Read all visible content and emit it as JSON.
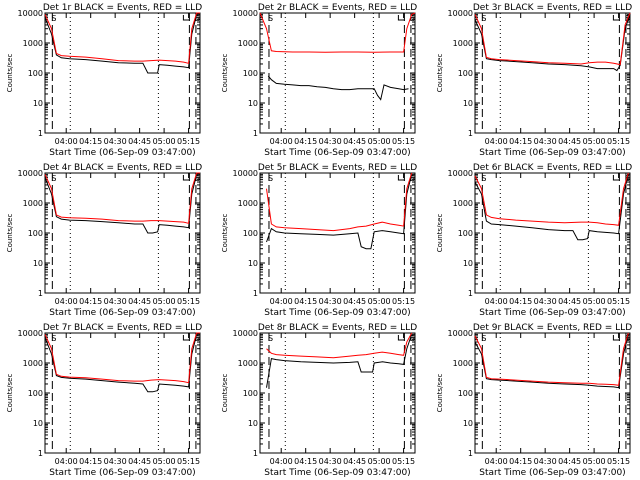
{
  "colors": {
    "events": "#000000",
    "lld": "#ff0000",
    "axis": "#000000"
  },
  "common": {
    "ylabel": "Counts/sec",
    "xlabel": "Start Time (06-Sep-09 03:47:00)",
    "y_ticks": [
      1,
      10,
      100,
      1000,
      10000
    ],
    "y_tick_labels": [
      "1",
      "10",
      "100",
      "1000",
      "10000"
    ],
    "x_ticks": [
      "04:00",
      "04:15",
      "04:30",
      "04:45",
      "05:00",
      "05:15"
    ],
    "x_tick_minutes": [
      13,
      28,
      43,
      58,
      73,
      88
    ],
    "xlim_minutes": [
      0,
      95
    ],
    "ylim": [
      1,
      10000
    ],
    "yscale": "log",
    "marker_label": "S"
  },
  "chart_data": [
    {
      "type": "line",
      "title": "Det 1r BLACK = Events, RED = LLD",
      "markers": {
        "dashed_min": [
          4.5,
          88.5,
          92.5
        ],
        "dotted_min": [
          15.5,
          69.5
        ]
      },
      "series": [
        {
          "name": "Events",
          "x": [
            0,
            4,
            7,
            10,
            15,
            25,
            35,
            45,
            55,
            60,
            63,
            65,
            69,
            70,
            75,
            80,
            85,
            88,
            90,
            93,
            95
          ],
          "values": [
            7000,
            2000,
            400,
            320,
            300,
            280,
            250,
            220,
            210,
            210,
            100,
            100,
            100,
            190,
            180,
            170,
            160,
            150,
            2000,
            9000,
            10000
          ]
        },
        {
          "name": "LLD",
          "x": [
            0,
            4,
            7,
            10,
            15,
            25,
            35,
            45,
            55,
            60,
            65,
            70,
            75,
            80,
            85,
            88,
            90,
            93,
            95
          ],
          "values": [
            9000,
            3000,
            450,
            380,
            360,
            340,
            300,
            260,
            250,
            250,
            260,
            270,
            260,
            250,
            230,
            210,
            3000,
            10000,
            10000
          ]
        }
      ]
    },
    {
      "type": "line",
      "title": "Det 2r BLACK = Events, RED = LLD",
      "markers": {
        "dashed_min": [
          5.5,
          88.5,
          92.5
        ],
        "dotted_min": [
          15.5,
          69.5
        ]
      },
      "series": [
        {
          "name": "Events",
          "x": [
            5,
            7,
            10,
            15,
            20,
            25,
            30,
            35,
            40,
            45,
            50,
            55,
            60,
            65,
            70,
            72,
            74,
            76,
            80,
            85,
            88,
            91
          ],
          "values": [
            80,
            60,
            45,
            42,
            40,
            38,
            38,
            35,
            33,
            30,
            28,
            28,
            30,
            30,
            30,
            18,
            13,
            40,
            33,
            30,
            28,
            30
          ]
        },
        {
          "name": "LLD",
          "x": [
            0,
            4,
            7,
            10,
            20,
            30,
            40,
            50,
            60,
            70,
            80,
            88,
            90,
            93,
            95
          ],
          "values": [
            10000,
            3000,
            550,
            520,
            500,
            500,
            490,
            500,
            500,
            490,
            500,
            500,
            3000,
            9000,
            10000
          ]
        }
      ]
    },
    {
      "type": "line",
      "title": "Det 3r BLACK = Events, RED = LLD",
      "markers": {
        "dashed_min": [
          4.5,
          88.5,
          92.5
        ],
        "dotted_min": [
          15.5,
          69.5
        ]
      },
      "series": [
        {
          "name": "Events",
          "x": [
            0,
            4,
            7,
            10,
            15,
            25,
            35,
            45,
            55,
            65,
            70,
            75,
            80,
            85,
            87,
            89,
            92,
            95
          ],
          "values": [
            6000,
            2000,
            300,
            280,
            260,
            240,
            220,
            200,
            190,
            175,
            160,
            140,
            140,
            140,
            120,
            180,
            3000,
            9000
          ]
        },
        {
          "name": "LLD",
          "x": [
            0,
            4,
            7,
            10,
            15,
            25,
            35,
            45,
            55,
            65,
            70,
            75,
            80,
            85,
            89,
            92,
            95
          ],
          "values": [
            9000,
            3000,
            330,
            300,
            280,
            260,
            240,
            220,
            210,
            200,
            220,
            230,
            230,
            210,
            190,
            4000,
            10000
          ]
        }
      ]
    },
    {
      "type": "line",
      "title": "Det 4r BLACK = Events, RED = LLD",
      "markers": {
        "dashed_min": [
          4.5,
          88.5,
          92.5
        ],
        "dotted_min": [
          15.5,
          69.5
        ]
      },
      "series": [
        {
          "name": "Events",
          "x": [
            0,
            4,
            7,
            10,
            15,
            25,
            35,
            45,
            55,
            60,
            63,
            66,
            69,
            70,
            75,
            80,
            85,
            88,
            90,
            93,
            95
          ],
          "values": [
            7000,
            2000,
            350,
            290,
            270,
            260,
            240,
            220,
            200,
            200,
            100,
            100,
            110,
            190,
            180,
            170,
            160,
            150,
            2000,
            9000,
            10000
          ]
        },
        {
          "name": "LLD",
          "x": [
            0,
            4,
            7,
            10,
            15,
            25,
            35,
            45,
            55,
            60,
            65,
            70,
            75,
            80,
            85,
            88,
            90,
            93,
            95
          ],
          "values": [
            9000,
            3000,
            400,
            340,
            320,
            310,
            290,
            260,
            250,
            250,
            260,
            260,
            250,
            240,
            230,
            210,
            3000,
            10000,
            10000
          ]
        }
      ]
    },
    {
      "type": "line",
      "title": "Det 5r BLACK = Events, RED = LLD",
      "markers": {
        "dashed_min": [
          5.5,
          88.5,
          92.5
        ],
        "dotted_min": [
          15.5,
          69.5
        ]
      },
      "series": [
        {
          "name": "Events",
          "x": [
            4,
            7,
            10,
            15,
            25,
            35,
            45,
            55,
            60,
            62,
            65,
            68,
            70,
            75,
            80,
            85,
            88,
            90,
            93
          ],
          "values": [
            50,
            140,
            110,
            100,
            95,
            90,
            85,
            95,
            100,
            35,
            30,
            30,
            110,
            120,
            110,
            100,
            95,
            2000,
            9000
          ]
        },
        {
          "name": "LLD",
          "x": [
            4,
            7,
            10,
            15,
            25,
            35,
            45,
            55,
            60,
            65,
            70,
            75,
            80,
            85,
            88,
            90,
            93
          ],
          "values": [
            3000,
            200,
            160,
            150,
            140,
            130,
            120,
            140,
            160,
            170,
            200,
            230,
            200,
            180,
            170,
            3000,
            10000
          ]
        }
      ]
    },
    {
      "type": "line",
      "title": "Det 6r BLACK = Events, RED = LLD",
      "markers": {
        "dashed_min": [
          4.5,
          88.5,
          92.5
        ],
        "dotted_min": [
          15.5,
          69.5
        ]
      },
      "series": [
        {
          "name": "Events",
          "x": [
            0,
            4,
            7,
            10,
            15,
            25,
            35,
            45,
            55,
            60,
            63,
            66,
            69,
            70,
            75,
            80,
            85,
            88,
            91,
            94
          ],
          "values": [
            5000,
            2000,
            250,
            200,
            190,
            170,
            150,
            130,
            120,
            120,
            60,
            60,
            65,
            120,
            110,
            105,
            100,
            95,
            2000,
            9000
          ]
        },
        {
          "name": "LLD",
          "x": [
            0,
            4,
            7,
            10,
            15,
            25,
            35,
            45,
            55,
            65,
            70,
            75,
            80,
            85,
            88,
            91,
            94
          ],
          "values": [
            8000,
            3000,
            400,
            330,
            300,
            270,
            250,
            230,
            220,
            230,
            230,
            220,
            200,
            190,
            180,
            3000,
            10000
          ]
        }
      ]
    },
    {
      "type": "line",
      "title": "Det 7r BLACK = Events, RED = LLD",
      "markers": {
        "dashed_min": [
          4.5,
          88.5,
          92.5
        ],
        "dotted_min": [
          15.5,
          69.5
        ]
      },
      "series": [
        {
          "name": "Events",
          "x": [
            0,
            4,
            7,
            10,
            15,
            25,
            35,
            45,
            55,
            60,
            63,
            66,
            69,
            70,
            75,
            80,
            85,
            88,
            90,
            93,
            95
          ],
          "values": [
            7000,
            2000,
            380,
            330,
            310,
            290,
            260,
            230,
            210,
            200,
            110,
            110,
            120,
            200,
            190,
            180,
            170,
            160,
            2000,
            9000,
            10000
          ]
        },
        {
          "name": "LLD",
          "x": [
            0,
            4,
            7,
            10,
            15,
            25,
            35,
            45,
            55,
            60,
            65,
            70,
            75,
            80,
            85,
            88,
            90,
            93,
            95
          ],
          "values": [
            9000,
            3000,
            420,
            360,
            340,
            320,
            290,
            260,
            250,
            250,
            270,
            280,
            270,
            260,
            240,
            220,
            3000,
            10000,
            10000
          ]
        }
      ]
    },
    {
      "type": "line",
      "title": "Det 8r BLACK = Events, RED = LLD",
      "markers": {
        "dashed_min": [
          5.5,
          88.5,
          92.5
        ],
        "dotted_min": [
          15.5,
          69.5
        ]
      },
      "series": [
        {
          "name": "Events",
          "x": [
            4,
            7,
            10,
            15,
            25,
            35,
            45,
            55,
            60,
            62,
            66,
            69,
            70,
            75,
            80,
            85,
            88,
            90,
            93
          ],
          "values": [
            150,
            1400,
            1300,
            1200,
            1100,
            1050,
            1000,
            1050,
            1100,
            500,
            500,
            500,
            1000,
            1100,
            1000,
            950,
            900,
            3000,
            9000
          ]
        },
        {
          "name": "LLD",
          "x": [
            4,
            7,
            10,
            15,
            25,
            35,
            45,
            55,
            60,
            65,
            70,
            75,
            80,
            85,
            88,
            90,
            93
          ],
          "values": [
            3000,
            2100,
            1900,
            1800,
            1700,
            1600,
            1500,
            1700,
            1800,
            1900,
            2100,
            2300,
            2100,
            1900,
            1800,
            5000,
            10000
          ]
        }
      ]
    },
    {
      "type": "line",
      "title": "Det 9r BLACK = Events, RED = LLD",
      "markers": {
        "dashed_min": [
          4.5,
          88.5,
          92.5
        ],
        "dotted_min": [
          15.5,
          69.5
        ]
      },
      "series": [
        {
          "name": "Events",
          "x": [
            0,
            4,
            7,
            10,
            15,
            25,
            35,
            45,
            55,
            65,
            70,
            75,
            80,
            85,
            88,
            91,
            94
          ],
          "values": [
            5000,
            2000,
            300,
            280,
            270,
            250,
            230,
            210,
            200,
            190,
            180,
            170,
            165,
            160,
            150,
            2000,
            9000
          ]
        },
        {
          "name": "LLD",
          "x": [
            0,
            4,
            7,
            10,
            15,
            25,
            35,
            45,
            55,
            65,
            70,
            75,
            80,
            85,
            88,
            91,
            94
          ],
          "values": [
            8000,
            3000,
            330,
            300,
            290,
            270,
            250,
            230,
            220,
            210,
            210,
            200,
            195,
            190,
            180,
            3000,
            10000
          ]
        }
      ]
    }
  ]
}
